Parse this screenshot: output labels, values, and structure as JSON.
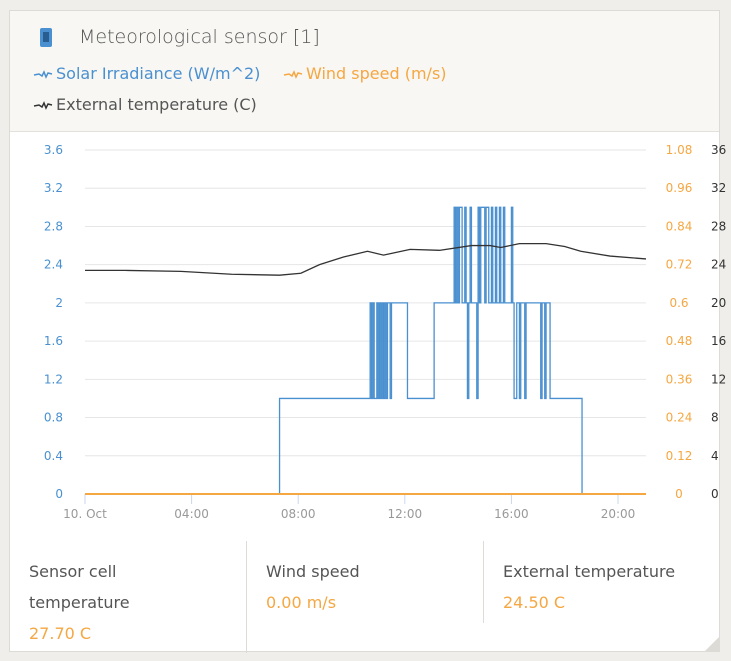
{
  "header": {
    "title": "Meteorological sensor [1]",
    "device_icon": "sensor-device-icon"
  },
  "legend": [
    {
      "label": "Solar Irradiance (W/m^2)",
      "color": "#4a90d0"
    },
    {
      "label": "Wind speed (m/s)",
      "color": "#f5a742"
    },
    {
      "label": "External temperature (C)",
      "color": "#333333"
    }
  ],
  "stats": [
    {
      "label": "Sensor cell temperature",
      "value": "27.70 C"
    },
    {
      "label": "Wind speed",
      "value": "0.00 m/s"
    },
    {
      "label": "External temperature",
      "value": "24.50 C"
    }
  ],
  "chart_data": {
    "type": "line",
    "x_unit": "hour",
    "xlim": [
      0,
      21.05
    ],
    "x_ticks": [
      {
        "h": 0,
        "label": "10. Oct"
      },
      {
        "h": 4,
        "label": "04:00"
      },
      {
        "h": 8,
        "label": "08:00"
      },
      {
        "h": 12,
        "label": "12:00"
      },
      {
        "h": 16,
        "label": "16:00"
      },
      {
        "h": 20,
        "label": "20:00"
      }
    ],
    "axes": [
      {
        "id": "solar",
        "ylim": [
          0,
          3.6
        ],
        "ticks": [
          "0",
          "0.4",
          "0.8",
          "1.2",
          "1.6",
          "2",
          "2.4",
          "2.8",
          "3.2",
          "3.6"
        ],
        "color": "#4a90d0",
        "side": "left"
      },
      {
        "id": "wind",
        "ylim": [
          0,
          1.08
        ],
        "ticks": [
          "0",
          "0.12",
          "0.24",
          "0.36",
          "0.48",
          "0.6",
          "0.72",
          "0.84",
          "0.96",
          "1.08"
        ],
        "color": "#f5a742",
        "side": "right"
      },
      {
        "id": "temp",
        "ylim": [
          0,
          36
        ],
        "ticks": [
          "0",
          "4",
          "8",
          "12",
          "16",
          "20",
          "24",
          "28",
          "32",
          "36"
        ],
        "color": "#333333",
        "side": "right-outer"
      }
    ],
    "series": [
      {
        "name": "Solar Irradiance (W/m^2)",
        "axis": "solar",
        "step": true,
        "color": "#4a90d0",
        "points": [
          [
            0,
            0
          ],
          [
            7.3,
            1
          ],
          [
            10.7,
            2
          ],
          [
            10.75,
            1
          ],
          [
            10.8,
            2
          ],
          [
            10.85,
            1
          ],
          [
            10.95,
            2
          ],
          [
            11.0,
            1
          ],
          [
            11.05,
            2
          ],
          [
            11.1,
            1
          ],
          [
            11.15,
            2
          ],
          [
            11.2,
            1
          ],
          [
            11.25,
            2
          ],
          [
            11.3,
            1
          ],
          [
            11.35,
            2
          ],
          [
            11.45,
            1
          ],
          [
            11.5,
            2
          ],
          [
            12.1,
            1
          ],
          [
            13.1,
            2
          ],
          [
            13.85,
            3
          ],
          [
            13.9,
            2
          ],
          [
            13.95,
            3
          ],
          [
            14.0,
            2
          ],
          [
            14.05,
            3
          ],
          [
            14.15,
            2
          ],
          [
            14.25,
            3
          ],
          [
            14.3,
            2
          ],
          [
            14.35,
            1
          ],
          [
            14.4,
            2
          ],
          [
            14.45,
            3
          ],
          [
            14.5,
            2
          ],
          [
            14.7,
            1
          ],
          [
            14.75,
            3
          ],
          [
            14.8,
            2
          ],
          [
            14.85,
            3
          ],
          [
            15.0,
            2
          ],
          [
            15.05,
            3
          ],
          [
            15.15,
            2
          ],
          [
            15.25,
            3
          ],
          [
            15.3,
            2
          ],
          [
            15.4,
            3
          ],
          [
            15.45,
            2
          ],
          [
            15.55,
            3
          ],
          [
            15.6,
            2
          ],
          [
            15.7,
            3
          ],
          [
            15.75,
            2
          ],
          [
            16.0,
            3
          ],
          [
            16.05,
            2
          ],
          [
            16.1,
            1
          ],
          [
            16.2,
            2
          ],
          [
            16.3,
            1
          ],
          [
            16.35,
            2
          ],
          [
            16.5,
            1
          ],
          [
            16.55,
            2
          ],
          [
            17.1,
            1
          ],
          [
            17.15,
            2
          ],
          [
            17.25,
            1
          ],
          [
            17.3,
            2
          ],
          [
            17.45,
            1
          ],
          [
            18.65,
            0
          ],
          [
            21.05,
            0
          ]
        ]
      },
      {
        "name": "Wind speed (m/s)",
        "axis": "wind",
        "step": false,
        "color": "#f5a742",
        "points": [
          [
            0,
            0
          ],
          [
            21.05,
            0
          ]
        ]
      },
      {
        "name": "External temperature (C)",
        "axis": "temp",
        "step": false,
        "color": "#333333",
        "points": [
          [
            0,
            23.4
          ],
          [
            1.5,
            23.4
          ],
          [
            3.6,
            23.3
          ],
          [
            5.5,
            23.0
          ],
          [
            7.3,
            22.9
          ],
          [
            8.1,
            23.1
          ],
          [
            8.8,
            24.0
          ],
          [
            9.7,
            24.8
          ],
          [
            10.6,
            25.4
          ],
          [
            11.2,
            25.0
          ],
          [
            12.2,
            25.6
          ],
          [
            13.3,
            25.5
          ],
          [
            14.5,
            26.0
          ],
          [
            15.2,
            26.0
          ],
          [
            15.6,
            25.8
          ],
          [
            16.3,
            26.2
          ],
          [
            17.3,
            26.2
          ],
          [
            18.0,
            25.9
          ],
          [
            18.6,
            25.4
          ],
          [
            19.7,
            24.9
          ],
          [
            21.05,
            24.6
          ]
        ]
      }
    ]
  }
}
